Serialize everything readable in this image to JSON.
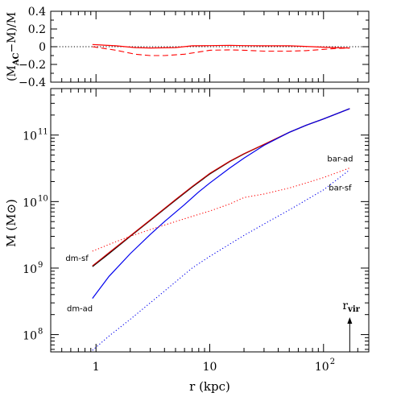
{
  "chart_data": [
    {
      "type": "line",
      "title": "",
      "ylabel_parts": [
        "(M",
        "AC",
        "−M)/M"
      ],
      "xscale": "log",
      "xlim": [
        0.4,
        250
      ],
      "ylim": [
        -0.4,
        0.4
      ],
      "yticks": [
        {
          "v": 0.4,
          "label": "0.4"
        },
        {
          "v": 0.2,
          "label": "0.2"
        },
        {
          "v": 0.0,
          "label": "0"
        },
        {
          "v": -0.2,
          "label": "−0.2"
        },
        {
          "v": -0.4,
          "label": "−0.4"
        }
      ],
      "reference_line": {
        "y": 0,
        "style": "dotted",
        "color": "#000000"
      },
      "series": [
        {
          "style": "solid",
          "color": "#ff0000",
          "x": [
            0.93,
            1.5,
            2.2,
            3.0,
            5.0,
            7.0,
            10,
            15,
            20,
            30,
            50,
            80,
            120,
            170
          ],
          "y": [
            0.025,
            0.01,
            -0.01,
            -0.015,
            -0.01,
            0.01,
            0.012,
            0.015,
            0.012,
            0.01,
            0.01,
            0.0,
            -0.01,
            -0.015
          ]
        },
        {
          "style": "dashed",
          "color": "#ff0000",
          "x": [
            0.93,
            1.5,
            2.2,
            3.0,
            4.0,
            6.0,
            8.0,
            10,
            15,
            20,
            30,
            50,
            70,
            100,
            130,
            170
          ],
          "y": [
            0.0,
            -0.04,
            -0.085,
            -0.1,
            -0.1,
            -0.085,
            -0.06,
            -0.04,
            -0.035,
            -0.04,
            -0.05,
            -0.05,
            -0.045,
            -0.03,
            -0.02,
            -0.015
          ]
        }
      ]
    },
    {
      "type": "line",
      "title": "",
      "xlabel": "r (kpc)",
      "ylabel": "M (M⊙)",
      "xscale": "log",
      "yscale": "log",
      "xlim": [
        0.4,
        250
      ],
      "ylim": [
        55000000.0,
        500000000000.0
      ],
      "xticks": [
        {
          "v": 1,
          "label": "1"
        },
        {
          "v": 10,
          "label": "10"
        },
        {
          "v": 100,
          "label": "10",
          "exp": "2"
        }
      ],
      "yticks": [
        {
          "v": 100000000.0,
          "label": "10",
          "exp": "8"
        },
        {
          "v": 1000000000.0,
          "label": "10",
          "exp": "9"
        },
        {
          "v": 10000000000.0,
          "label": "10",
          "exp": "10"
        },
        {
          "v": 100000000000.0,
          "label": "10",
          "exp": "11"
        }
      ],
      "series": [
        {
          "style": "solid",
          "color": "#000000",
          "x": [
            0.93,
            1.3,
            2.0,
            3.0,
            5.0,
            7.0,
            10,
            15,
            20,
            30,
            50,
            70,
            100,
            170
          ],
          "y": [
            1050000000.0,
            1650000000.0,
            3000000000.0,
            5200000000.0,
            10500000000.0,
            16500000000.0,
            26000000000.0,
            40000000000.0,
            52000000000.0,
            72000000000.0,
            110000000000.0,
            140000000000.0,
            175000000000.0,
            250000000000.0
          ]
        },
        {
          "style": "solid",
          "color": "#cc0000",
          "x": [
            0.93,
            1.3,
            2.0,
            3.0,
            5.0,
            7.0,
            10,
            15,
            20,
            30,
            50,
            70,
            100,
            170
          ],
          "y": [
            1080000000.0,
            1700000000.0,
            3050000000.0,
            5300000000.0,
            10700000000.0,
            16800000000.0,
            26500000000.0,
            40500000000.0,
            52500000000.0,
            72500000000.0,
            110000000000.0,
            140000000000.0,
            175000000000.0,
            250000000000.0
          ]
        },
        {
          "style": "solid",
          "color": "#0000ee",
          "x": [
            0.93,
            1.3,
            2.0,
            3.0,
            4.0,
            6.0,
            8.0,
            10,
            15,
            20,
            30,
            50,
            70,
            100,
            170
          ],
          "y": [
            350000000.0,
            750000000.0,
            1650000000.0,
            3200000000.0,
            5000000000.0,
            9000000000.0,
            14000000000.0,
            19000000000.0,
            32000000000.0,
            45000000000.0,
            70000000000.0,
            110000000000.0,
            140000000000.0,
            175000000000.0,
            250000000000.0
          ]
        },
        {
          "style": "dotted",
          "color": "#ff0000",
          "x": [
            0.93,
            1.5,
            2.0,
            3.0,
            5.0,
            7.0,
            10,
            15,
            20,
            30,
            50,
            70,
            100,
            170
          ],
          "y": [
            1800000000.0,
            2500000000.0,
            3000000000.0,
            3800000000.0,
            5000000000.0,
            6000000000.0,
            7200000000.0,
            9200000000.0,
            11500000000.0,
            13000000000.0,
            16000000000.0,
            19000000000.0,
            23000000000.0,
            32000000000.0
          ]
        },
        {
          "style": "dotted",
          "color": "#0000ee",
          "x": [
            0.93,
            1.3,
            2.0,
            3.0,
            5.0,
            7.0,
            10,
            15,
            20,
            30,
            50,
            70,
            100,
            170
          ],
          "y": [
            58000000.0,
            95000000.0,
            170000000.0,
            300000000.0,
            620000000.0,
            1000000000.0,
            1500000000.0,
            2300000000.0,
            3100000000.0,
            4600000000.0,
            7500000000.0,
            10500000000.0,
            15000000000.0,
            30000000000.0
          ]
        }
      ],
      "annotations": [
        {
          "text": "dm-sf",
          "x": 0.68,
          "y": 1280000000.0
        },
        {
          "text": "dm-ad",
          "x": 0.72,
          "y": 225000000.0
        },
        {
          "text": "bar-ad",
          "x": 140,
          "y": 40000000000.0
        },
        {
          "text": "bar-sf",
          "x": 140,
          "y": 14800000000.0
        }
      ],
      "arrow_label": {
        "text": "r",
        "sub": "vir",
        "x": 170
      }
    }
  ]
}
